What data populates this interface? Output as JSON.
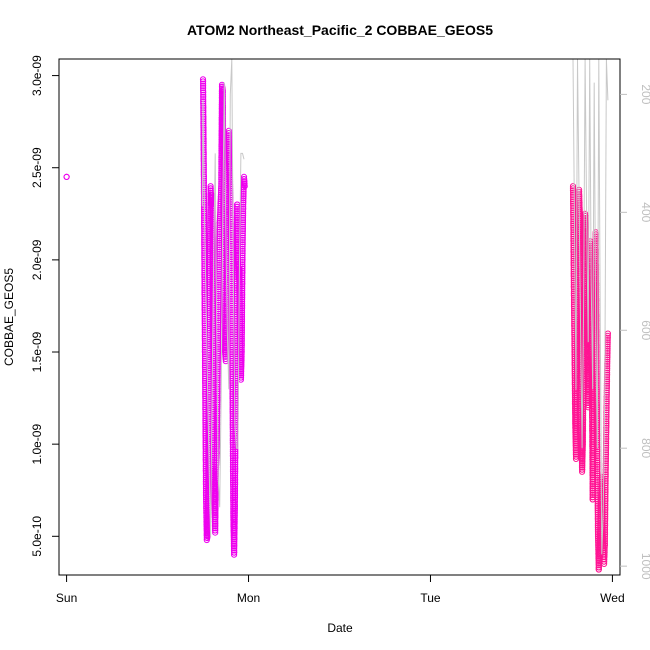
{
  "chart_data": {
    "type": "scatter",
    "title": "ATOM2 Northeast_Pacific_2 COBBAE_GEOS5",
    "xlabel": "Date",
    "ylabel": "COBBAE_GEOS5",
    "x_ticks": [
      "Sun",
      "Mon",
      "Tue",
      "Wed"
    ],
    "x_tick_values": [
      0,
      24,
      48,
      72
    ],
    "x_unit": "hours since Sun 00:00",
    "xlim": [
      -1,
      73
    ],
    "y_ticks": [
      "5.0e-10",
      "1.0e-09",
      "1.5e-09",
      "2.0e-09",
      "2.5e-09",
      "3.0e-09"
    ],
    "y_tick_values": [
      5e-10,
      1e-09,
      1.5e-09,
      2e-09,
      2.5e-09,
      3e-09
    ],
    "ylim": [
      2.9e-10,
      3.09e-09
    ],
    "y2_ticks": [
      "200",
      "400",
      "600",
      "800",
      "1000"
    ],
    "y2_tick_values": [
      200,
      400,
      600,
      800,
      1000
    ],
    "y2lim": [
      1015,
      140
    ],
    "grid": false,
    "series": [
      {
        "color": "#ee00ee",
        "marker": "open-circle",
        "segments": [
          {
            "x": [
              0.0,
              0.0
            ],
            "y": [
              2.45e-09,
              2.45e-09
            ]
          },
          {
            "x": [
              18.0,
              18.1,
              18.2,
              18.3,
              18.4,
              18.5,
              18.6,
              18.7,
              18.8,
              18.9,
              19.0,
              19.1,
              19.2
            ],
            "y": [
              2.98e-09,
              2.5e-09,
              1.8e-09,
              1.2e-09,
              7e-10,
              4.8e-10,
              5e-10,
              8e-10,
              1.4e-09,
              2e-09,
              2.4e-09,
              2.3e-09,
              2.35e-09
            ]
          },
          {
            "x": [
              19.2,
              19.3,
              19.4,
              19.5,
              19.6,
              19.7,
              19.8
            ],
            "y": [
              2.35e-09,
              1.8e-09,
              1.2e-09,
              7e-10,
              5.2e-10,
              8.5e-10,
              9.5e-10
            ]
          },
          {
            "x": [
              19.8,
              20.0,
              20.2,
              20.4,
              20.5,
              20.6,
              20.7
            ],
            "y": [
              9.5e-10,
              1.6e-09,
              2.2e-09,
              2.4e-09,
              2.95e-09,
              2.92e-09,
              2.3e-09
            ]
          },
          {
            "x": [
              20.7,
              20.9,
              21.0,
              21.2,
              21.4,
              21.6,
              21.8
            ],
            "y": [
              2.3e-09,
              1.5e-09,
              1.45e-09,
              2.2e-09,
              2.7e-09,
              2.35e-09,
              1.8e-09
            ]
          },
          {
            "x": [
              21.8,
              21.9,
              22.0,
              22.1,
              22.2,
              22.3,
              22.4,
              22.5
            ],
            "y": [
              1.8e-09,
              1.2e-09,
              6e-10,
              4e-10,
              6.5e-10,
              1.2e-09,
              1.8e-09,
              2.3e-09
            ]
          },
          {
            "x": [
              22.5,
              22.6,
              22.7,
              22.8,
              22.9,
              23.0,
              23.1,
              23.2,
              23.3,
              23.4,
              23.5
            ],
            "y": [
              2.3e-09,
              2e-09,
              1.9e-09,
              1.95e-09,
              1.5e-09,
              1.35e-09,
              1.5e-09,
              2e-09,
              2.3e-09,
              2.45e-09,
              2.4e-09
            ]
          }
        ]
      },
      {
        "color": "#ff1493",
        "marker": "open-circle",
        "segments": [
          {
            "x": [
              66.8,
              66.9,
              67.0,
              67.1,
              67.2,
              67.3,
              67.4,
              67.5,
              67.6,
              67.7
            ],
            "y": [
              2.4e-09,
              1.9e-09,
              1.5e-09,
              1.1e-09,
              9.2e-10,
              1.3e-09,
              1.7e-09,
              2e-09,
              2.38e-09,
              2.25e-09
            ]
          },
          {
            "x": [
              67.7,
              67.8,
              67.9,
              68.0,
              68.1,
              68.2,
              68.3,
              68.4,
              68.5,
              68.6
            ],
            "y": [
              2.25e-09,
              1.6e-09,
              1.1e-09,
              8.5e-10,
              1e-09,
              1.5e-09,
              2e-09,
              2.25e-09,
              2.1e-09,
              1.8e-09
            ]
          },
          {
            "x": [
              68.6,
              68.7,
              68.8,
              68.9,
              69.0,
              69.1,
              69.2,
              69.3,
              69.4
            ],
            "y": [
              1.8e-09,
              1.4e-09,
              1.2e-09,
              1.5e-09,
              1.9e-09,
              2.1e-09,
              1.8e-09,
              1.3e-09,
              7e-10
            ]
          },
          {
            "x": [
              69.4,
              69.5,
              69.6,
              69.7,
              69.8,
              69.9,
              70.0,
              70.1,
              70.2
            ],
            "y": [
              7e-10,
              1e-09,
              1.5e-09,
              1.9e-09,
              2.15e-09,
              1.5e-09,
              9e-10,
              5e-10,
              3.2e-10
            ]
          },
          {
            "x": [
              70.2,
              70.3,
              70.4,
              70.5,
              70.6,
              70.7,
              70.8,
              70.9,
              71.0
            ],
            "y": [
              3.2e-10,
              4e-10,
              5.5e-10,
              7e-10,
              8.2e-10,
              5.5e-10,
              4e-10,
              3.5e-10,
              4.5e-10
            ]
          },
          {
            "x": [
              71.0,
              71.1,
              71.2,
              71.3,
              71.4
            ],
            "y": [
              4.5e-10,
              8e-10,
              1.1e-09,
              1.4e-09,
              1.6e-09
            ]
          }
        ]
      },
      {
        "color": "#c8c8c8",
        "marker": "line",
        "y_axis": "right",
        "segments": [
          {
            "x": [
              17.9,
              18.0,
              18.2,
              18.4,
              18.6,
              18.8,
              19.0,
              19.2,
              19.4,
              19.6,
              19.8,
              20.0,
              20.2,
              20.4,
              20.6,
              20.8,
              21.0,
              21.2,
              21.4,
              21.6,
              21.8,
              22.0,
              22.2,
              22.4,
              22.6,
              22.8,
              23.0,
              23.2,
              23.4
            ],
            "y": [
              390,
              210,
              420,
              550,
              700,
              830,
              950,
              700,
              480,
              300,
              600,
              850,
              900,
              700,
              400,
              180,
              430,
              600,
              700,
              200,
              140,
              520,
              760,
              800,
              800,
              500,
              300,
              300,
              310
            ]
          },
          {
            "x": [
              66.8,
              67.0,
              67.2,
              67.4,
              67.6,
              67.8,
              68.0,
              68.2,
              68.4,
              68.6,
              68.8,
              69.0,
              69.2,
              69.4,
              69.6,
              69.8,
              70.0,
              70.2,
              70.4,
              70.6,
              70.8,
              71.0,
              71.2,
              71.4
            ],
            "y": [
              140,
              420,
              700,
              140,
              380,
              600,
              800,
              560,
              140,
              400,
              620,
              140,
              520,
              700,
              180,
              600,
              800,
              140,
              600,
              980,
              900,
              700,
              140,
              210
            ]
          }
        ]
      }
    ]
  }
}
